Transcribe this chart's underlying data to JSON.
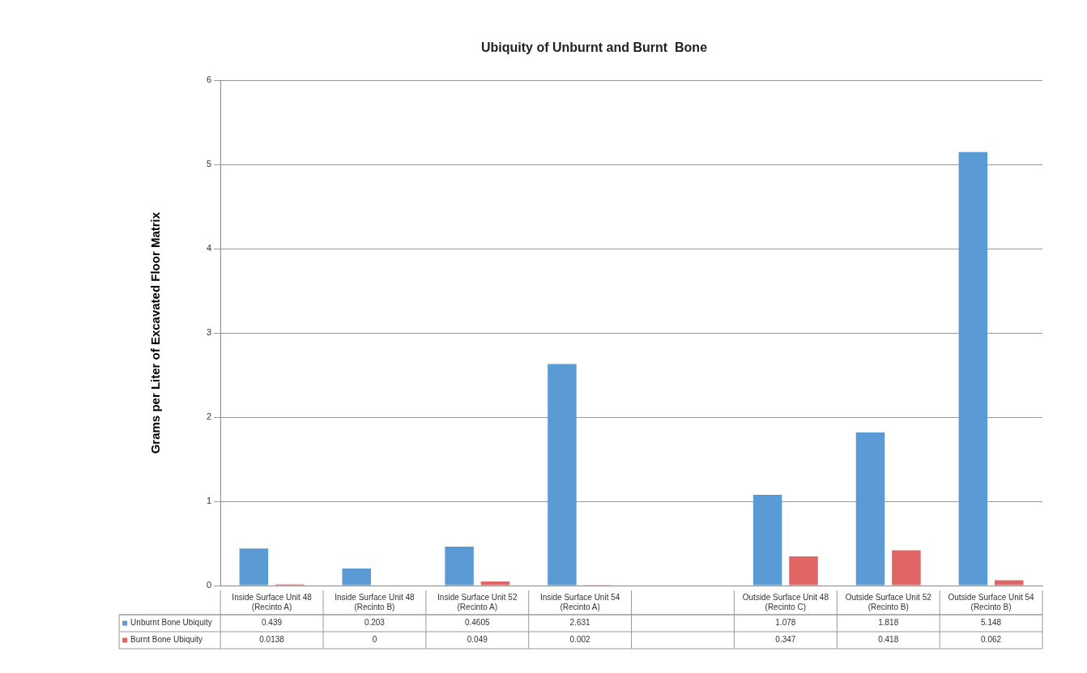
{
  "chart_data": {
    "type": "bar",
    "title": "Ubiquity of Unburnt and Burnt  Bone",
    "ylabel": "Grams per Liter of Excavated Floor Matrix",
    "categories": [
      "Inside Surface Unit 48 (Recinto A)",
      "Inside Surface Unit 48 (Recinto B)",
      "Inside Surface Unit 52 (Recinto A)",
      "Inside Surface Unit 54 (Recinto A)",
      null,
      "Outside Surface Unit 48 (Recinto C)",
      "Outside Surface Unit 52 (Recinto B)",
      "Outside Surface Unit 54 (Recinto B)"
    ],
    "series": [
      {
        "name": "Unburnt Bone Ubiquity",
        "color": "#5b9bd5",
        "values": [
          0.439,
          0.203,
          0.4605,
          2.631,
          null,
          1.078,
          1.818,
          5.148
        ]
      },
      {
        "name": "Burnt Bone Ubiquity",
        "color": "#e06666",
        "values": [
          0.0138,
          0,
          0.049,
          0.002,
          null,
          0.347,
          0.418,
          0.062
        ]
      }
    ],
    "ylim": [
      0,
      6
    ],
    "yticks": [
      0,
      1,
      2,
      3,
      4,
      5,
      6
    ],
    "grid": "y",
    "legend": "bottom",
    "data_labels": true
  }
}
